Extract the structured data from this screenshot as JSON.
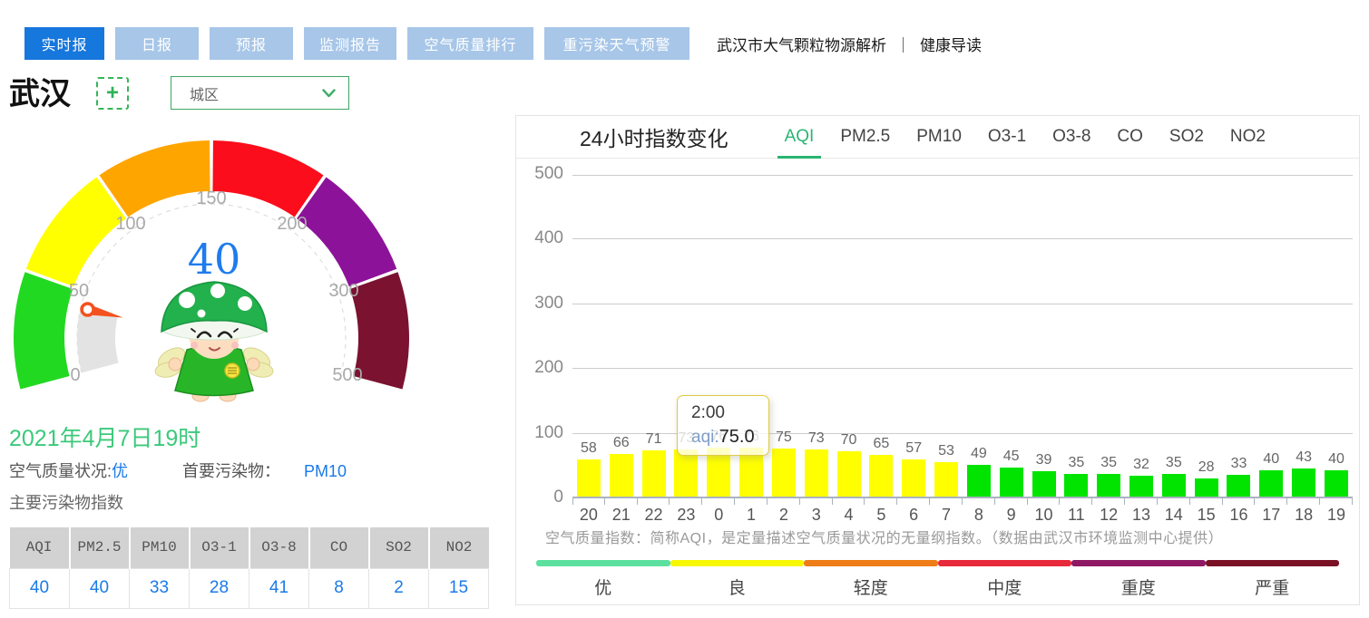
{
  "nav": {
    "tabs": [
      "实时报",
      "日报",
      "预报",
      "监测报告",
      "空气质量排行",
      "重污染天气预警"
    ],
    "active_tab": "实时报",
    "links": [
      "武汉市大气颗粒物源解析",
      "健康导读"
    ],
    "link_separator": "｜"
  },
  "city": {
    "name": "武汉",
    "add_icon": "+",
    "district_select": {
      "value": "城区"
    }
  },
  "gauge": {
    "value": 40,
    "value_color": "#1e7bee",
    "ticks": [
      "0",
      "50",
      "100",
      "150",
      "200",
      "300",
      "500"
    ],
    "segments": [
      {
        "label": "优",
        "range": [
          0,
          50
        ],
        "color": "#21d921"
      },
      {
        "label": "良",
        "range": [
          50,
          100
        ],
        "color": "#ffff00"
      },
      {
        "label": "轻度",
        "range": [
          100,
          150
        ],
        "color": "#ffa500"
      },
      {
        "label": "中度",
        "range": [
          150,
          200
        ],
        "color": "#fb0d1b"
      },
      {
        "label": "重度",
        "range": [
          200,
          300
        ],
        "color": "#8c1399"
      },
      {
        "label": "严重",
        "range": [
          300,
          500
        ],
        "color": "#7a1230"
      }
    ]
  },
  "status": {
    "datetime": "2021年4月7日19时",
    "quality_label": "空气质量状况:",
    "quality_value": "优",
    "primary_label": "首要污染物：",
    "primary_value": "PM10",
    "table_title": "主要污染物指数"
  },
  "pollutants": {
    "headers": [
      "AQI",
      "PM2.5",
      "PM10",
      "O3-1",
      "O3-8",
      "CO",
      "SO2",
      "NO2"
    ],
    "values": [
      40,
      40,
      33,
      28,
      41,
      8,
      2,
      15
    ]
  },
  "chart": {
    "title": "24小时指数变化",
    "tabs": [
      "AQI",
      "PM2.5",
      "PM10",
      "O3-1",
      "O3-8",
      "CO",
      "SO2",
      "NO2"
    ],
    "active_tab": "AQI",
    "tooltip": {
      "time": "2:00",
      "series_label": "aqi:",
      "value": "75.0"
    },
    "note": "空气质量指数：简称AQI，是定量描述空气质量状况的无量纲指数。（数据由武汉市环境监测中心提供）",
    "legend": [
      {
        "label": "优",
        "color": "#5ce0a0"
      },
      {
        "label": "良",
        "color": "#f7f704"
      },
      {
        "label": "轻度",
        "color": "#ee7d17"
      },
      {
        "label": "中度",
        "color": "#e8293b"
      },
      {
        "label": "重度",
        "color": "#8e1864"
      },
      {
        "label": "严重",
        "color": "#7a1125"
      }
    ]
  },
  "chart_data": {
    "type": "bar",
    "title": "24小时指数变化",
    "x": [
      "20",
      "21",
      "22",
      "23",
      "0",
      "1",
      "2",
      "3",
      "4",
      "5",
      "6",
      "7",
      "8",
      "9",
      "10",
      "11",
      "12",
      "13",
      "14",
      "15",
      "16",
      "17",
      "18",
      "19"
    ],
    "values": [
      58,
      66,
      71,
      73,
      76,
      76,
      75,
      73,
      70,
      65,
      57,
      53,
      49,
      45,
      39,
      35,
      35,
      32,
      35,
      28,
      33,
      40,
      43,
      40
    ],
    "yticks": [
      0,
      100,
      200,
      300,
      400,
      500
    ],
    "ylim": [
      0,
      500
    ],
    "grid": true,
    "legend_position": "bottom",
    "bar_color_rules": [
      {
        "max": 50,
        "color": "#00e400"
      },
      {
        "max": 100,
        "color": "#ffff00"
      }
    ]
  },
  "colors": {
    "nav_active_bg": "#1677dd",
    "nav_inactive_bg": "#a7c6e8",
    "accent_green": "#2fb257",
    "select_border_green": "#3da664",
    "link_blue": "#1a7ae8",
    "date_green": "#3bc97a",
    "tab_active_green": "#2ab573",
    "needle_orange": "#f4511e",
    "tooltip_border": "#e0ca45",
    "axis_line": "#a9b4c0"
  }
}
